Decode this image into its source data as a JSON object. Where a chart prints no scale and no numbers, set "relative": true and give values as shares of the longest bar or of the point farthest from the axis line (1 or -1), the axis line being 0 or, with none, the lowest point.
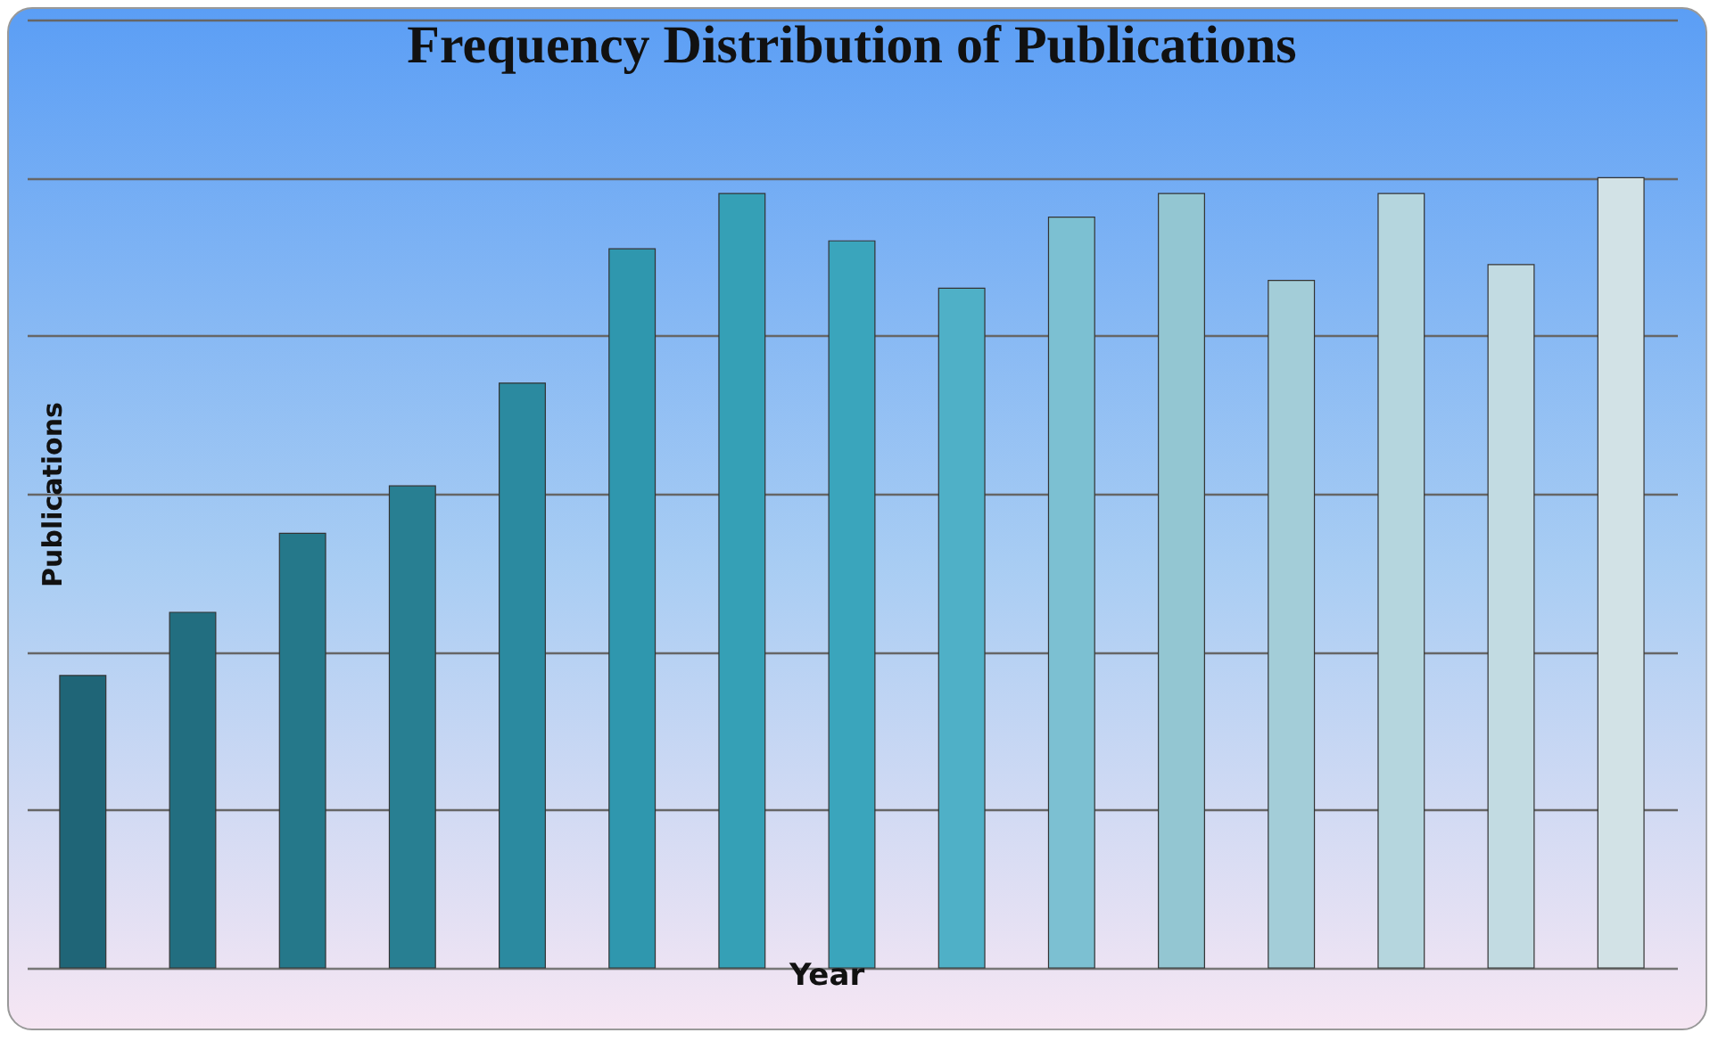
{
  "chart_data": {
    "type": "bar",
    "title": "Frequency Distribution of Publications",
    "xlabel": "Year",
    "ylabel": "Publications",
    "relative": true,
    "grid": "y",
    "categories": [
      null,
      null,
      null,
      null,
      null,
      null,
      null,
      null,
      null,
      null,
      null,
      null,
      null,
      null,
      null
    ],
    "values": [
      0.37,
      0.45,
      0.55,
      0.61,
      0.74,
      0.91,
      0.98,
      0.92,
      0.86,
      0.95,
      0.98,
      0.87,
      0.98,
      0.89,
      1
    ],
    "colors": [
      "#1f6577",
      "#226e80",
      "#25788a",
      "#287f92",
      "#2b8aa0",
      "#2f97ae",
      "#35a0b6",
      "#3aa5bc",
      "#4fb0c7",
      "#7cc0d2",
      "#93c6d2",
      "#a3cdd8",
      "#b5d6de",
      "#c2dbe2",
      "#d2e2e6"
    ]
  }
}
